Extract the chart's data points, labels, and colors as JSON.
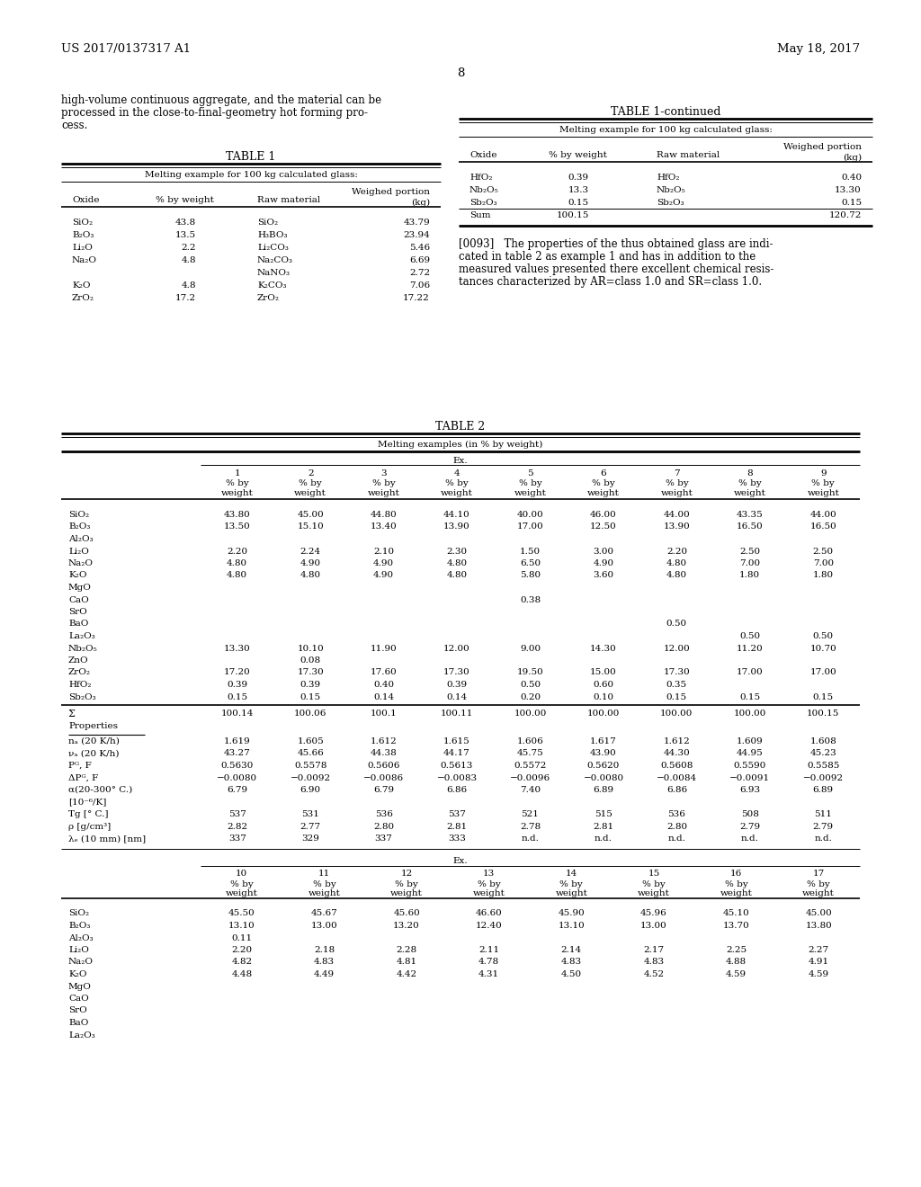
{
  "bg_color": "#ffffff",
  "header_left": "US 2017/0137317 A1",
  "header_right": "May 18, 2017",
  "page_number": "8",
  "left_col_text": [
    "high-volume continuous aggregate, and the material can be",
    "processed in the close-to-final-geometry hot forming pro-",
    "cess."
  ],
  "table1_title": "TABLE 1",
  "table1_subtitle": "Melting example for 100 kg calculated glass:",
  "table1_rows": [
    [
      "SiO₂",
      "43.8",
      "SiO₂",
      "43.79"
    ],
    [
      "B₂O₃",
      "13.5",
      "H₃BO₃",
      "23.94"
    ],
    [
      "Li₂O",
      "2.2",
      "Li₂CO₃",
      "5.46"
    ],
    [
      "Na₂O",
      "4.8",
      "Na₂CO₃",
      "6.69"
    ],
    [
      "",
      "",
      "NaNO₃",
      "2.72"
    ],
    [
      "K₂O",
      "4.8",
      "K₂CO₃",
      "7.06"
    ],
    [
      "ZrO₂",
      "17.2",
      "ZrO₂",
      "17.22"
    ]
  ],
  "table1c_title": "TABLE 1-continued",
  "table1c_subtitle": "Melting example for 100 kg calculated glass:",
  "table1c_rows": [
    [
      "HfO₂",
      "0.39",
      "HfO₂",
      "0.40"
    ],
    [
      "Nb₂O₅",
      "13.3",
      "Nb₂O₅",
      "13.30"
    ],
    [
      "Sb₂O₃",
      "0.15",
      "Sb₂O₃",
      "0.15"
    ],
    [
      "Sum",
      "100.15",
      "",
      "120.72"
    ]
  ],
  "para_0093_lines": [
    "[0093]   The properties of the thus obtained glass are indi-",
    "cated in table 2 as example 1 and has in addition to the",
    "measured values presented there excellent chemical resis-",
    "tances characterized by AR=class 1.0 and SR=class 1.0."
  ],
  "table2_title": "TABLE 2",
  "table2_subtitle": "Melting examples (in % by weight)",
  "table2_ex_label": "Ex.",
  "table2_col_nums": [
    "1",
    "2",
    "3",
    "4",
    "5",
    "6",
    "7",
    "8",
    "9"
  ],
  "table2_rows_top": [
    [
      "SiO₂",
      "43.80",
      "45.00",
      "44.80",
      "44.10",
      "40.00",
      "46.00",
      "44.00",
      "43.35",
      "44.00"
    ],
    [
      "B₂O₃",
      "13.50",
      "15.10",
      "13.40",
      "13.90",
      "17.00",
      "12.50",
      "13.90",
      "16.50",
      "16.50"
    ],
    [
      "Al₂O₃",
      "",
      "",
      "",
      "",
      "",
      "",
      "",
      "",
      ""
    ],
    [
      "Li₂O",
      "2.20",
      "2.24",
      "2.10",
      "2.30",
      "1.50",
      "3.00",
      "2.20",
      "2.50",
      "2.50"
    ],
    [
      "Na₂O",
      "4.80",
      "4.90",
      "4.90",
      "4.80",
      "6.50",
      "4.90",
      "4.80",
      "7.00",
      "7.00"
    ],
    [
      "K₂O",
      "4.80",
      "4.80",
      "4.90",
      "4.80",
      "5.80",
      "3.60",
      "4.80",
      "1.80",
      "1.80"
    ],
    [
      "MgO",
      "",
      "",
      "",
      "",
      "",
      "",
      "",
      "",
      ""
    ],
    [
      "CaO",
      "",
      "",
      "",
      "",
      "0.38",
      "",
      "",
      "",
      ""
    ],
    [
      "SrO",
      "",
      "",
      "",
      "",
      "",
      "",
      "",
      "",
      ""
    ],
    [
      "BaO",
      "",
      "",
      "",
      "",
      "",
      "",
      "0.50",
      "",
      ""
    ],
    [
      "La₂O₃",
      "",
      "",
      "",
      "",
      "",
      "",
      "",
      "0.50",
      "0.50"
    ],
    [
      "Nb₂O₅",
      "13.30",
      "10.10",
      "11.90",
      "12.00",
      "9.00",
      "14.30",
      "12.00",
      "11.20",
      "10.70"
    ],
    [
      "ZnO",
      "",
      "0.08",
      "",
      "",
      "",
      "",
      "",
      "",
      ""
    ],
    [
      "ZrO₂",
      "17.20",
      "17.30",
      "17.60",
      "17.30",
      "19.50",
      "15.00",
      "17.30",
      "17.00",
      "17.00"
    ],
    [
      "HfO₂",
      "0.39",
      "0.39",
      "0.40",
      "0.39",
      "0.50",
      "0.60",
      "0.35",
      "",
      ""
    ],
    [
      "Sb₂O₃",
      "0.15",
      "0.15",
      "0.14",
      "0.14",
      "0.20",
      "0.10",
      "0.15",
      "0.15",
      "0.15"
    ]
  ],
  "table2_sigma_row": [
    "Σ",
    "100.14",
    "100.06",
    "100.1",
    "100.11",
    "100.00",
    "100.00",
    "100.00",
    "100.00",
    "100.15"
  ],
  "table2_properties_label": "Properties",
  "table2_prop_rows": [
    [
      "nₐ (20 K/h)",
      "1.619",
      "1.605",
      "1.612",
      "1.615",
      "1.606",
      "1.617",
      "1.612",
      "1.609",
      "1.608"
    ],
    [
      "νₐ (20 K/h)",
      "43.27",
      "45.66",
      "44.38",
      "44.17",
      "45.75",
      "43.90",
      "44.30",
      "44.95",
      "45.23"
    ],
    [
      "Pᴳ, F",
      "0.5630",
      "0.5578",
      "0.5606",
      "0.5613",
      "0.5572",
      "0.5620",
      "0.5608",
      "0.5590",
      "0.5585"
    ],
    [
      "ΔPᴳ, F",
      "−0.0080",
      "−0.0092",
      "−0.0086",
      "−0.0083",
      "−0.0096",
      "−0.0080",
      "−0.0084",
      "−0.0091",
      "−0.0092"
    ],
    [
      "α(20-300° C.)",
      "6.79",
      "6.90",
      "6.79",
      "6.86",
      "7.40",
      "6.89",
      "6.86",
      "6.93",
      "6.89"
    ],
    [
      "[10⁻⁶/K]",
      "",
      "",
      "",
      "",
      "",
      "",
      "",
      "",
      ""
    ],
    [
      "Tg [° C.]",
      "537",
      "531",
      "536",
      "537",
      "521",
      "515",
      "536",
      "508",
      "511"
    ],
    [
      "ρ [g/cm³]",
      "2.82",
      "2.77",
      "2.80",
      "2.81",
      "2.78",
      "2.81",
      "2.80",
      "2.79",
      "2.79"
    ],
    [
      "λₑ (10 mm) [nm]",
      "337",
      "329",
      "337",
      "333",
      "n.d.",
      "n.d.",
      "n.d.",
      "n.d.",
      "n.d."
    ]
  ],
  "table2_ex2_label": "Ex.",
  "table2_col_nums2": [
    "10",
    "11",
    "12",
    "13",
    "14",
    "15",
    "16",
    "17"
  ],
  "table2_rows_bottom": [
    [
      "SiO₂",
      "45.50",
      "45.67",
      "45.60",
      "46.60",
      "45.90",
      "45.96",
      "45.10",
      "45.00"
    ],
    [
      "B₂O₃",
      "13.10",
      "13.00",
      "13.20",
      "12.40",
      "13.10",
      "13.00",
      "13.70",
      "13.80"
    ],
    [
      "Al₂O₃",
      "0.11",
      "",
      "",
      "",
      "",
      "",
      "",
      ""
    ],
    [
      "Li₂O",
      "2.20",
      "2.18",
      "2.28",
      "2.11",
      "2.14",
      "2.17",
      "2.25",
      "2.27"
    ],
    [
      "Na₂O",
      "4.82",
      "4.83",
      "4.81",
      "4.78",
      "4.83",
      "4.83",
      "4.88",
      "4.91"
    ],
    [
      "K₂O",
      "4.48",
      "4.49",
      "4.42",
      "4.31",
      "4.50",
      "4.52",
      "4.59",
      "4.59"
    ],
    [
      "MgO",
      "",
      "",
      "",
      "",
      "",
      "",
      "",
      ""
    ],
    [
      "CaO",
      "",
      "",
      "",
      "",
      "",
      "",
      "",
      ""
    ],
    [
      "SrO",
      "",
      "",
      "",
      "",
      "",
      "",
      "",
      ""
    ],
    [
      "BaO",
      "",
      "",
      "",
      "",
      "",
      "",
      "",
      ""
    ],
    [
      "La₂O₃",
      "",
      "",
      "",
      "",
      "",
      "",
      "",
      ""
    ]
  ]
}
